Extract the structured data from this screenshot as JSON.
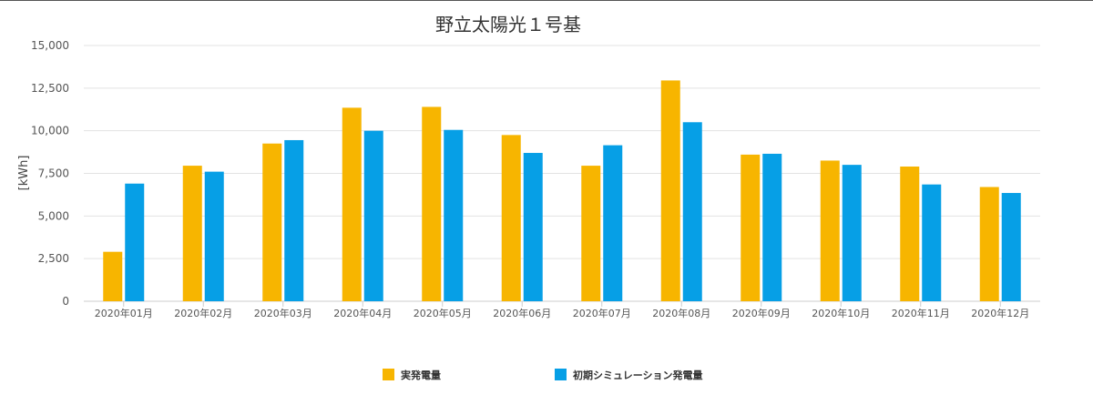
{
  "chart_data": {
    "type": "bar",
    "title": "野立太陽光１号基",
    "ylabel": "[kWh]",
    "xlabel": "",
    "ylim": [
      0,
      15000
    ],
    "yticks": [
      0,
      2500,
      5000,
      7500,
      10000,
      12500,
      15000
    ],
    "ytick_labels": [
      "0",
      "2,500",
      "5,000",
      "7,500",
      "10,000",
      "12,500",
      "15,000"
    ],
    "grid": true,
    "legend_position": "bottom",
    "categories": [
      "2020年01月",
      "2020年02月",
      "2020年03月",
      "2020年04月",
      "2020年05月",
      "2020年06月",
      "2020年07月",
      "2020年08月",
      "2020年09月",
      "2020年10月",
      "2020年11月",
      "2020年12月"
    ],
    "series": [
      {
        "name": "実発電量",
        "color": "#f7b500",
        "values": [
          2900,
          7950,
          9250,
          11350,
          11400,
          9750,
          7950,
          12950,
          8600,
          8250,
          7900,
          6700
        ]
      },
      {
        "name": "初期シミュレーション発電量",
        "color": "#069fe6",
        "values": [
          6900,
          7600,
          9450,
          10000,
          10050,
          8700,
          9150,
          10500,
          8650,
          8000,
          6850,
          6350
        ]
      }
    ]
  }
}
